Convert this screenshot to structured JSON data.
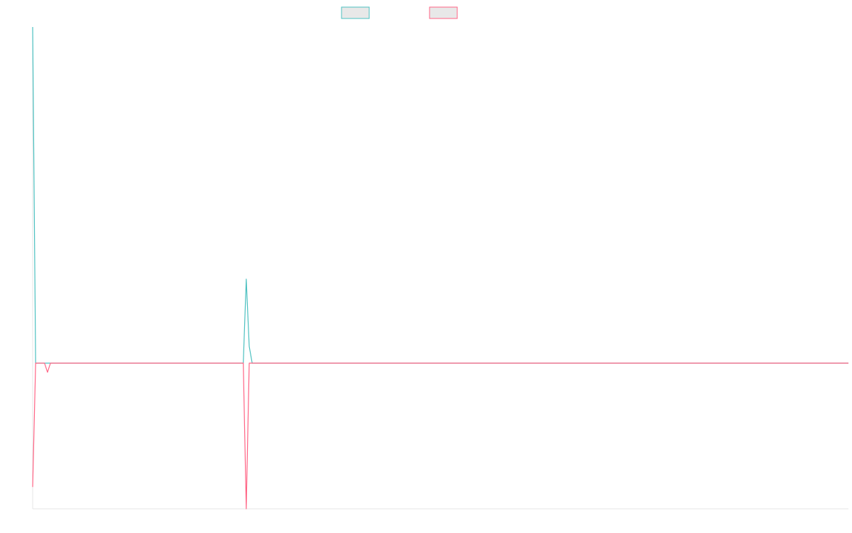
{
  "chart_data": {
    "type": "line",
    "title": "",
    "xlabel": "",
    "ylabel": "",
    "grid": false,
    "legend_position": "top-center",
    "x_count": 276,
    "ylim": [
      -1.0,
      1.0
    ],
    "series": [
      {
        "name": "",
        "color": "#4bc0c0",
        "points": [
          [
            0,
            1.0
          ],
          [
            1,
            0.0
          ],
          [
            71,
            0.0
          ],
          [
            72,
            0.25
          ],
          [
            73,
            0.05
          ],
          [
            74,
            0.0
          ],
          [
            275,
            0.0
          ]
        ]
      },
      {
        "name": "",
        "color": "#ff6384",
        "points": [
          [
            0,
            -0.68
          ],
          [
            1,
            0.0
          ],
          [
            4,
            0.0
          ],
          [
            5,
            -0.05
          ],
          [
            6,
            0.0
          ],
          [
            71,
            0.0
          ],
          [
            72,
            -0.8
          ],
          [
            73,
            0.0
          ],
          [
            275,
            0.0
          ]
        ]
      }
    ]
  }
}
